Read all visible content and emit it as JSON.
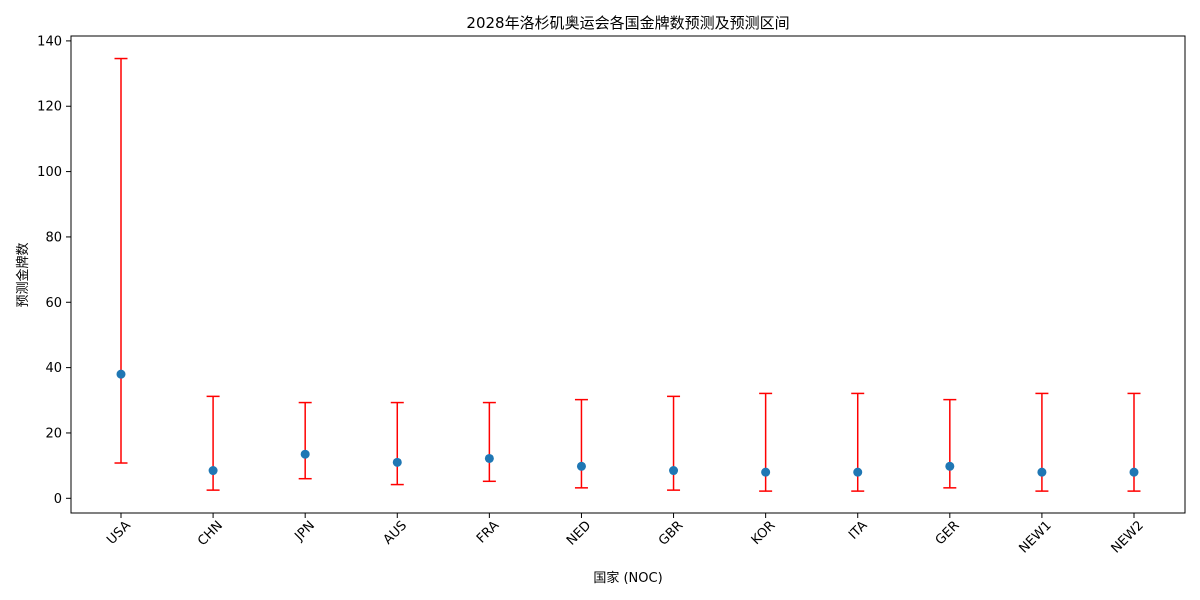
{
  "chart_data": {
    "type": "scatter",
    "title": "2028年洛杉矶奥运会各国金牌数预测及预测区间",
    "xlabel": "国家 (NOC)",
    "ylabel": "预测金牌数",
    "ylim": [
      -4.5,
      141.5
    ],
    "yticks": [
      0,
      20,
      40,
      60,
      80,
      100,
      120,
      140
    ],
    "grid": false,
    "categories": [
      "USA",
      "CHN",
      "JPN",
      "AUS",
      "FRA",
      "NED",
      "GBR",
      "KOR",
      "ITA",
      "GER",
      "NEW1",
      "NEW2"
    ],
    "values": [
      38,
      8.5,
      13.5,
      11,
      12.2,
      9.8,
      8.5,
      8,
      8,
      9.8,
      8,
      8
    ],
    "lower": [
      10.8,
      2.5,
      6,
      4.2,
      5.2,
      3.2,
      2.5,
      2.2,
      2.2,
      3.2,
      2.2,
      2.2
    ],
    "upper": [
      134.6,
      31.2,
      29.3,
      29.3,
      29.3,
      30.2,
      31.2,
      32.1,
      32.1,
      30.2,
      32.1,
      32.1
    ],
    "colors": {
      "point": "#1f77b4",
      "errorbar": "#ff0000",
      "axis": "#000000"
    }
  }
}
